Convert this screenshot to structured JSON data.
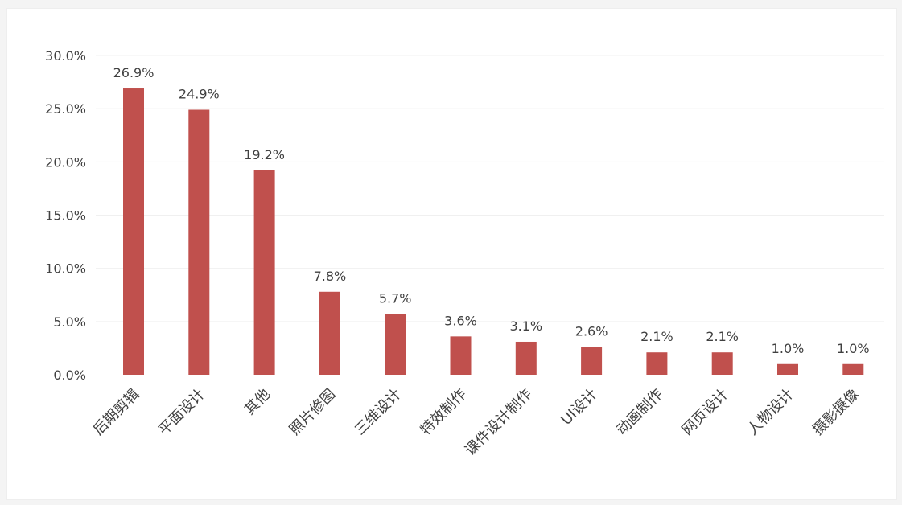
{
  "chart_data": {
    "type": "bar",
    "categories": [
      "后期剪辑",
      "平面设计",
      "其他",
      "照片修图",
      "三维设计",
      "特效制作",
      "课件设计制作",
      "UI设计",
      "动画制作",
      "网页设计",
      "人物设计",
      "摄影摄像"
    ],
    "values": [
      26.9,
      24.9,
      19.2,
      7.8,
      5.7,
      3.6,
      3.1,
      2.6,
      2.1,
      2.1,
      1.0,
      1.0
    ],
    "value_labels": [
      "26.9%",
      "24.9%",
      "19.2%",
      "7.8%",
      "5.7%",
      "3.6%",
      "3.1%",
      "2.6%",
      "2.1%",
      "2.1%",
      "1.0%",
      "1.0%"
    ],
    "yticks": [
      0,
      5,
      10,
      15,
      20,
      25,
      30
    ],
    "ytick_labels": [
      "0.0%",
      "5.0%",
      "10.0%",
      "15.0%",
      "20.0%",
      "25.0%",
      "30.0%"
    ],
    "ylim": [
      0,
      30
    ],
    "grid": true,
    "legend": "none",
    "colors": {
      "bar": "#c0504d",
      "grid": "#f0f0f0",
      "text": "#404040"
    }
  }
}
